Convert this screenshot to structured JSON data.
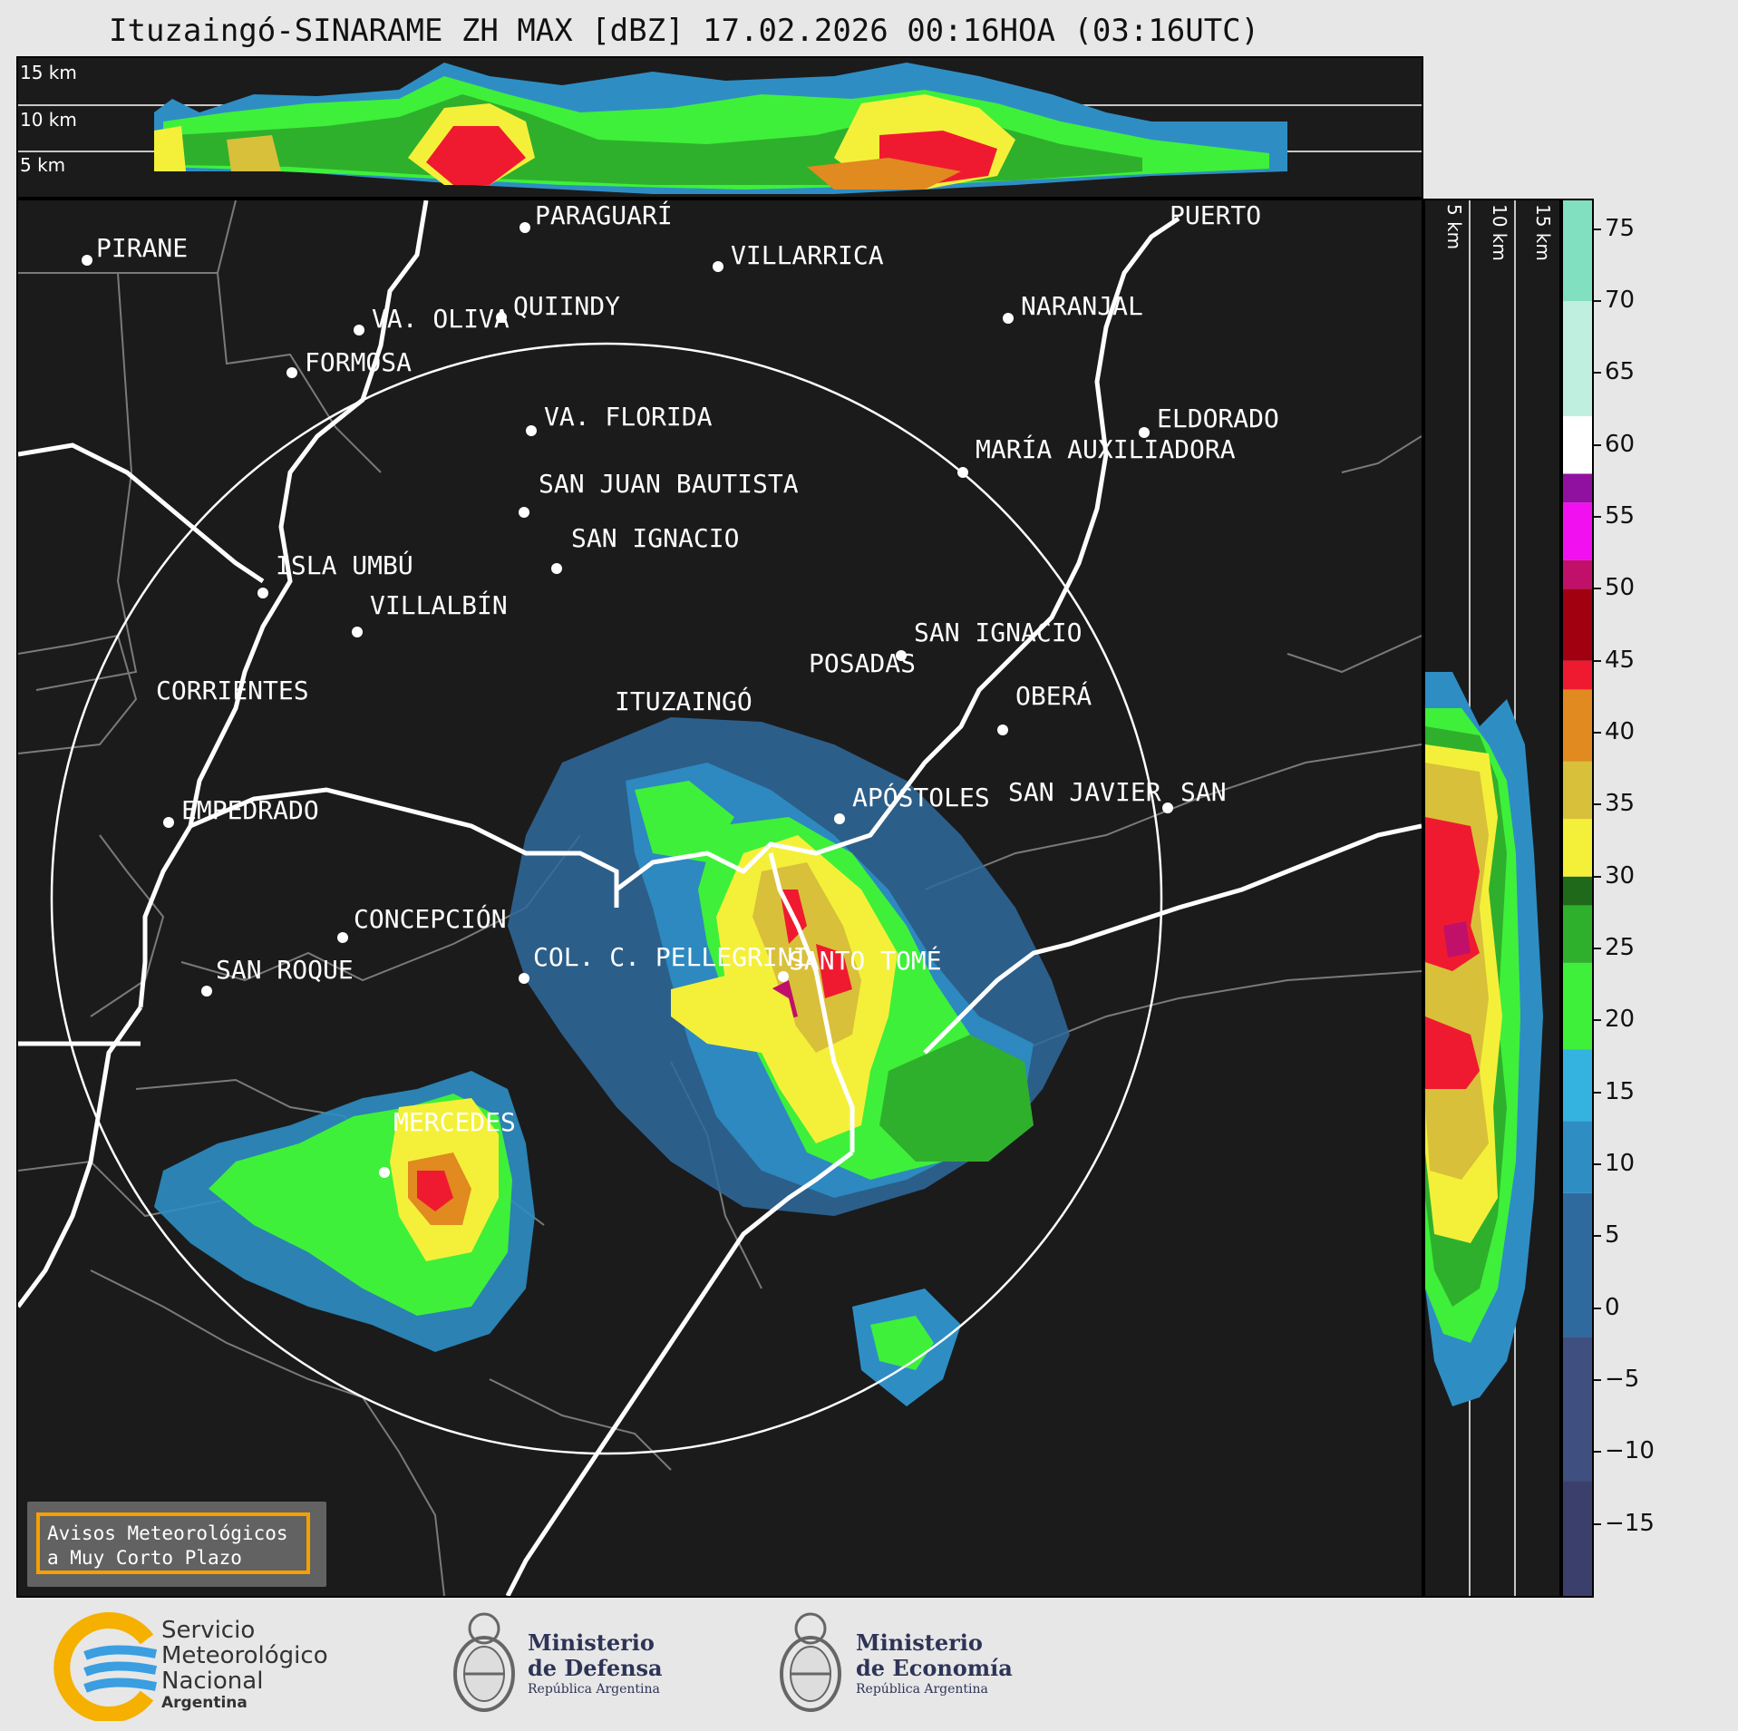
{
  "title": "Ituzaingó-SINARAME ZH MAX [dBZ] 17.02.2026 00:16HOA (03:16UTC)",
  "top_panel": {
    "altitude_labels": [
      "15 km",
      "10 km",
      "5 km"
    ]
  },
  "side_panel": {
    "altitude_labels": [
      "5 km",
      "10 km",
      "15 km"
    ]
  },
  "colorbar": {
    "unit": "dBZ",
    "ticks": [
      "75",
      "70",
      "65",
      "60",
      "55",
      "50",
      "45",
      "40",
      "35",
      "30",
      "25",
      "20",
      "15",
      "10",
      "5",
      "0",
      "−5",
      "−10",
      "−15"
    ],
    "range": [
      -20,
      77
    ],
    "colors": {
      "v_-20": "#3b3f6b",
      "v_-10": "#3e4f80",
      "v_0": "#2f6a9e",
      "v_10": "#2e8ec4",
      "v_15": "#34b3e0",
      "v_20": "#3ef03a",
      "v_25": "#2fb02c",
      "v_30": "#1f6a1a",
      "v_30b": "#f4f03a",
      "v_35": "#d8c03a",
      "v_40": "#e08a20",
      "v_43": "#f01a30",
      "v_48": "#a00010",
      "v_50": "#c0106a",
      "v_55": "#f010f0",
      "v_58": "#9010a0",
      "v_60": "#ffffff",
      "v_65": "#bff0df",
      "v_75": "#80e0c0"
    }
  },
  "cities": [
    {
      "name": "PIRANE"
    },
    {
      "name": "PARAGUARÍ"
    },
    {
      "name": "VILLARRICA"
    },
    {
      "name": "QUIINDY"
    },
    {
      "name": "VA. OLIVA"
    },
    {
      "name": "NARANJAL"
    },
    {
      "name": "PUERTO"
    },
    {
      "name": "FORMOSA"
    },
    {
      "name": "VA. FLORIDA"
    },
    {
      "name": "ELDORADO"
    },
    {
      "name": "MARÍA AUXILIADORA"
    },
    {
      "name": "SAN JUAN BAUTISTA"
    },
    {
      "name": "SAN IGNACIO"
    },
    {
      "name": "ISLA UMBÚ"
    },
    {
      "name": "VILLALBÍN"
    },
    {
      "name": "SAN IGNACIO"
    },
    {
      "name": "POSADAS"
    },
    {
      "name": "OBERÁ"
    },
    {
      "name": "CORRIENTES"
    },
    {
      "name": "ITUZAINGÓ"
    },
    {
      "name": "APÓSTOLES"
    },
    {
      "name": "SAN JAVIER"
    },
    {
      "name": "SAN"
    },
    {
      "name": "EMPEDRADO"
    },
    {
      "name": "CONCEPCIÓN"
    },
    {
      "name": "COL. C. PELLEGRINI"
    },
    {
      "name": "SANTO TOMÉ"
    },
    {
      "name": "SAN ROQUE"
    },
    {
      "name": "MERCEDES"
    }
  ],
  "notice": {
    "line1": "Avisos Meteorológicos",
    "line2": "a Muy Corto Plazo"
  },
  "logos": {
    "smn": {
      "line1": "Servicio",
      "line2": "Meteorológico",
      "line3": "Nacional",
      "line4": "Argentina"
    },
    "defensa": {
      "line1": "Ministerio",
      "line2": "de Defensa",
      "line3": "República Argentina"
    },
    "economia": {
      "line1": "Ministerio",
      "line2": "de Economía",
      "line3": "República Argentina"
    }
  }
}
